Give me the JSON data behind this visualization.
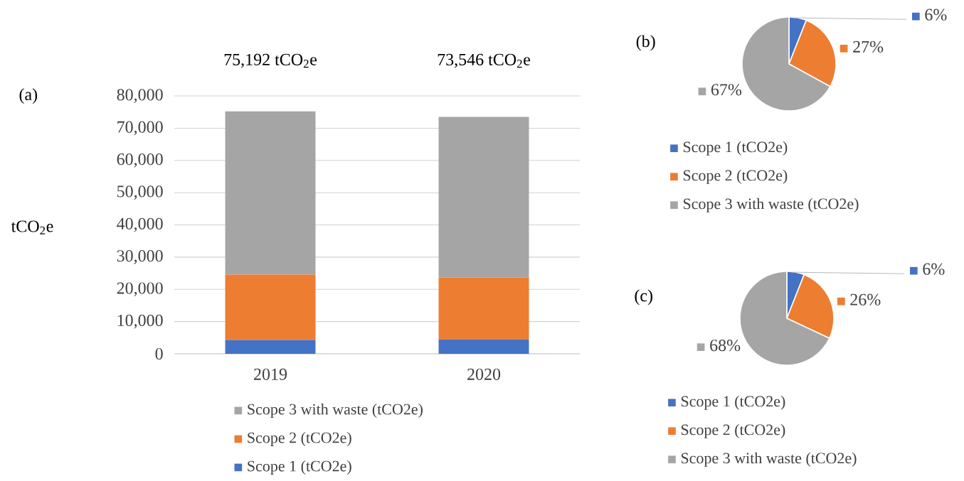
{
  "chart_data": [
    {
      "type": "bar",
      "title": "(a)",
      "ylabel": "tCO$_{2}$e",
      "categories": [
        "2019",
        "2020"
      ],
      "stacked": true,
      "series": [
        {
          "name": "Scope 1 (tCO2e)",
          "color": "#4472c4",
          "values": [
            4300,
            4500
          ]
        },
        {
          "name": "Scope 2 (tCO2e)",
          "color": "#ed7d31",
          "values": [
            20300,
            19200
          ]
        },
        {
          "name": "Scope 3 with waste (tCO2e)",
          "color": "#a5a5a5",
          "values": [
            50600,
            49800
          ]
        }
      ],
      "totals": [
        "75,192 tCO$_{2}$e",
        "73,546 tCO$_{2}$e"
      ],
      "ylim": [
        0,
        80000
      ],
      "yticks": [
        {
          "value": 0,
          "label": "0"
        },
        {
          "value": 10000,
          "label": "10,000"
        },
        {
          "value": 20000,
          "label": "20,000"
        },
        {
          "value": 30000,
          "label": "30,000"
        },
        {
          "value": 40000,
          "label": "40,000"
        },
        {
          "value": 50000,
          "label": "50,000"
        },
        {
          "value": 60000,
          "label": "60,000"
        },
        {
          "value": 70000,
          "label": "70,000"
        },
        {
          "value": 80000,
          "label": "80,000"
        }
      ],
      "grid": "y",
      "legend": "bottom"
    },
    {
      "type": "pie",
      "title": "(b)",
      "categories": [
        "Scope 1 (tCO2e)",
        "Scope 2 (tCO2e)",
        "Scope 3 with waste (tCO2e)"
      ],
      "values": [
        6,
        27,
        67
      ],
      "colors": [
        "#4472c4",
        "#ed7d31",
        "#a5a5a5"
      ],
      "value_labels": [
        "6%",
        "27%",
        "67%"
      ],
      "legend": "bottom"
    },
    {
      "type": "pie",
      "title": "(c)",
      "categories": [
        "Scope 1 (tCO2e)",
        "Scope 2 (tCO2e)",
        "Scope 3 with waste (tCO2e)"
      ],
      "values": [
        6,
        26,
        68
      ],
      "colors": [
        "#4472c4",
        "#ed7d31",
        "#a5a5a5"
      ],
      "value_labels": [
        "6%",
        "26%",
        "68%"
      ],
      "legend": "bottom"
    }
  ]
}
